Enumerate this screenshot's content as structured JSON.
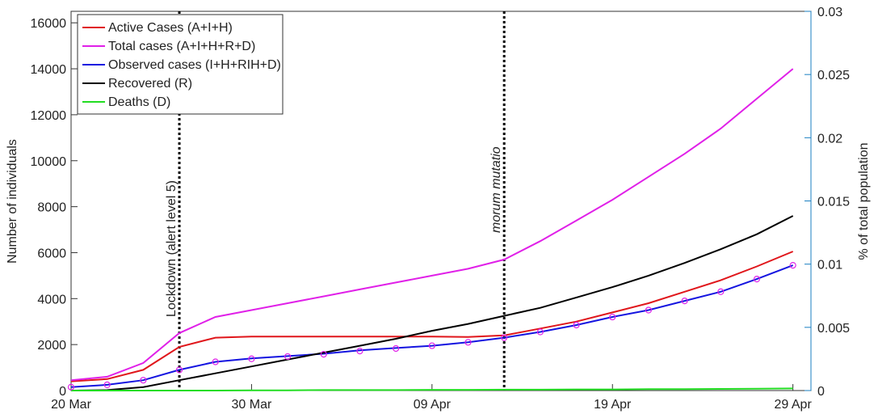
{
  "chart_data": {
    "type": "line",
    "ylabel": "Number of individuals",
    "y2label": "% of total population",
    "x": [
      "20 Mar",
      "22 Mar",
      "24 Mar",
      "26 Mar",
      "28 Mar",
      "30 Mar",
      "01 Apr",
      "03 Apr",
      "05 Apr",
      "07 Apr",
      "09 Apr",
      "11 Apr",
      "13 Apr",
      "15 Apr",
      "17 Apr",
      "19 Apr",
      "21 Apr",
      "23 Apr",
      "25 Apr",
      "27 Apr",
      "29 Apr"
    ],
    "xticks": [
      "20 Mar",
      "30 Mar",
      "09 Apr",
      "19 Apr",
      "29 Apr"
    ],
    "ylim": [
      0,
      16500
    ],
    "yticks": [
      0,
      2000,
      4000,
      6000,
      8000,
      10000,
      12000,
      14000,
      16000
    ],
    "y2lim": [
      0,
      0.03
    ],
    "y2ticks": [
      0,
      0.005,
      0.01,
      0.015,
      0.02,
      0.025,
      0.03
    ],
    "y2color": "#1a7fc1",
    "legend": "upper left",
    "series": [
      {
        "name": "Active Cases (A+I+H)",
        "color": "#e0161b",
        "values": [
          400,
          500,
          900,
          1900,
          2300,
          2350,
          2350,
          2350,
          2350,
          2350,
          2350,
          2330,
          2400,
          2700,
          3000,
          3400,
          3800,
          4300,
          4800,
          5400,
          6050
        ]
      },
      {
        "name": "Total cases (A+I+H+R+D)",
        "color": "#e020e8",
        "values": [
          450,
          600,
          1200,
          2500,
          3200,
          3500,
          3800,
          4100,
          4400,
          4700,
          5000,
          5300,
          5700,
          6500,
          7400,
          8300,
          9300,
          10300,
          11400,
          12700,
          14000
        ]
      },
      {
        "name": "Observed cases (I+H+RIH+D)",
        "color": "#1414e0",
        "values": [
          150,
          250,
          450,
          900,
          1250,
          1400,
          1500,
          1600,
          1750,
          1850,
          1950,
          2100,
          2300,
          2550,
          2850,
          3200,
          3500,
          3900,
          4300,
          4850,
          5450
        ]
      },
      {
        "name": "Recovered (R)",
        "color": "#000000",
        "values": [
          0,
          20,
          150,
          450,
          750,
          1050,
          1350,
          1650,
          1950,
          2250,
          2600,
          2900,
          3250,
          3600,
          4050,
          4500,
          5000,
          5550,
          6150,
          6800,
          7600
        ]
      },
      {
        "name": "Deaths (D)",
        "color": "#22dd22",
        "values": [
          0,
          0,
          0,
          0,
          0,
          10,
          10,
          20,
          20,
          20,
          30,
          30,
          40,
          40,
          50,
          50,
          60,
          60,
          70,
          80,
          90
        ]
      }
    ],
    "points": {
      "color": "#e020e8",
      "marker": "circle",
      "values": [
        150,
        250,
        450,
        900,
        1250,
        1380,
        1480,
        1580,
        1720,
        1830,
        1950,
        2100,
        2300,
        2550,
        2850,
        3200,
        3500,
        3900,
        4300,
        4850,
        5450
      ]
    },
    "vlines": [
      {
        "x": "26 Mar",
        "label": "Lockdown (alert level 5)"
      },
      {
        "x": "13 Apr",
        "label": "morum mutatio"
      }
    ]
  }
}
